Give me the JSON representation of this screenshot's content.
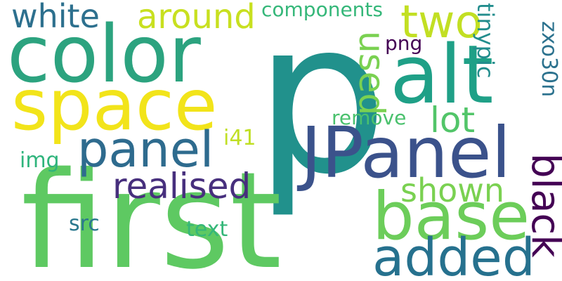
{
  "words": [
    {
      "id": "p",
      "text": "p",
      "color": "#21918c",
      "orientation": "horizontal"
    },
    {
      "id": "first",
      "text": "first",
      "color": "#5ec962",
      "orientation": "horizontal"
    },
    {
      "id": "color",
      "text": "color",
      "color": "#2ca37f",
      "orientation": "horizontal"
    },
    {
      "id": "space",
      "text": "space",
      "color": "#f2e41a",
      "orientation": "horizontal"
    },
    {
      "id": "alt",
      "text": "alt",
      "color": "#1fa087",
      "orientation": "horizontal"
    },
    {
      "id": "jpanel",
      "text": "JPanel",
      "color": "#3b528b",
      "orientation": "horizontal"
    },
    {
      "id": "base",
      "text": "base",
      "color": "#6ccd5a",
      "orientation": "horizontal"
    },
    {
      "id": "added",
      "text": "added",
      "color": "#26718e",
      "orientation": "horizontal"
    },
    {
      "id": "panel",
      "text": "panel",
      "color": "#2e6b8e",
      "orientation": "horizontal"
    },
    {
      "id": "two",
      "text": "two",
      "color": "#c2df23",
      "orientation": "horizontal"
    },
    {
      "id": "around",
      "text": "around",
      "color": "#c8e020",
      "orientation": "horizontal"
    },
    {
      "id": "white",
      "text": "white",
      "color": "#2d708e",
      "orientation": "horizontal"
    },
    {
      "id": "realised",
      "text": "realised",
      "color": "#472f7d",
      "orientation": "horizontal"
    },
    {
      "id": "black",
      "text": "black",
      "color": "#440154",
      "orientation": "vertical"
    },
    {
      "id": "used",
      "text": "used",
      "color": "#7ad151",
      "orientation": "vertical"
    },
    {
      "id": "lot",
      "text": "lot",
      "color": "#52c569",
      "orientation": "horizontal"
    },
    {
      "id": "shown",
      "text": "shown",
      "color": "#7ad151",
      "orientation": "horizontal"
    },
    {
      "id": "tinypic",
      "text": "tinypic",
      "color": "#228d8d",
      "orientation": "vertical"
    },
    {
      "id": "zxo30n",
      "text": "zxo30n",
      "color": "#2c728e",
      "orientation": "vertical"
    },
    {
      "id": "components",
      "text": "components",
      "color": "#35b779",
      "orientation": "horizontal"
    },
    {
      "id": "png",
      "text": "png",
      "color": "#440154",
      "orientation": "horizontal"
    },
    {
      "id": "remove",
      "text": "remove",
      "color": "#4ac16d",
      "orientation": "horizontal"
    },
    {
      "id": "i41",
      "text": "i41",
      "color": "#c0df25",
      "orientation": "horizontal"
    },
    {
      "id": "img",
      "text": "img",
      "color": "#2fb47c",
      "orientation": "horizontal"
    },
    {
      "id": "src",
      "text": "src",
      "color": "#2a788e",
      "orientation": "horizontal"
    },
    {
      "id": "text",
      "text": "text",
      "color": "#35b779",
      "orientation": "horizontal"
    }
  ]
}
